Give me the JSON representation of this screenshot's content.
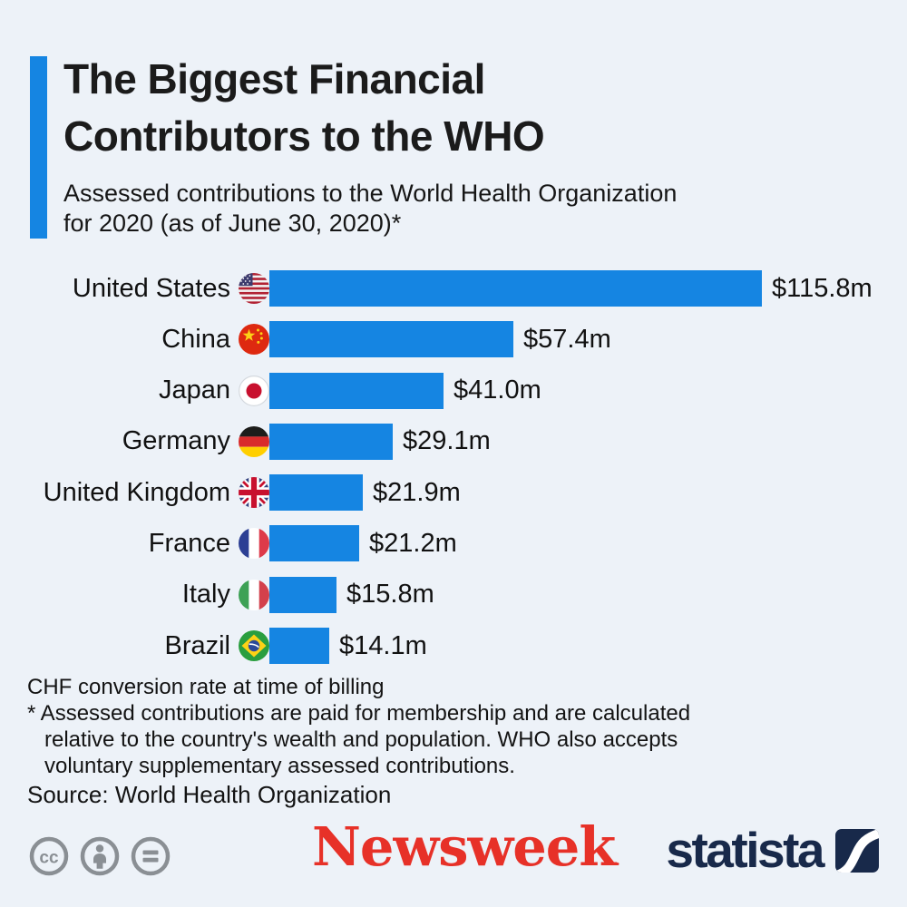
{
  "header": {
    "title_line1": "The Biggest Financial",
    "title_line2": "Contributors to the WHO",
    "subtitle_line1": "Assessed contributions to the World Health Organization",
    "subtitle_line2": "for 2020 (as of June 30, 2020)*"
  },
  "chart_data": {
    "type": "bar",
    "orientation": "horizontal",
    "title": "The Biggest Financial Contributors to the WHO",
    "unit": "USD millions",
    "categories": [
      "United States",
      "China",
      "Japan",
      "Germany",
      "United Kingdom",
      "France",
      "Italy",
      "Brazil"
    ],
    "values": [
      115.8,
      57.4,
      41.0,
      29.1,
      21.9,
      21.2,
      15.8,
      14.1
    ],
    "value_labels": [
      "$115.8m",
      "$57.4m",
      "$41.0m",
      "$29.1m",
      "$21.9m",
      "$21.2m",
      "$15.8m",
      "$14.1m"
    ],
    "flags": [
      "us",
      "cn",
      "jp",
      "de",
      "gb",
      "fr",
      "it",
      "br"
    ],
    "xlim": [
      0,
      115.8
    ],
    "bar_color": "#1585e2",
    "grid": false,
    "legend": false
  },
  "footnotes": {
    "note1": "CHF conversion rate at time of billing",
    "note2_line1": "* Assessed contributions are paid for membership and are calculated",
    "note2_line2": "relative to the country's wealth and population. WHO also accepts",
    "note2_line3": "voluntary supplementary assessed contributions.",
    "source": "Source: World Health Organization"
  },
  "branding": {
    "newsweek": "Newsweek",
    "newsweek_mark": ".",
    "statista": "statista",
    "license_icons": [
      "cc-icon",
      "attribution-person-icon",
      "equals-icon"
    ]
  },
  "colors": {
    "background": "#edf2f8",
    "accent_blue": "#1585e2",
    "newsweek_red": "#e73128",
    "statista_navy": "#18294a",
    "license_grey": "#8a8f94"
  }
}
